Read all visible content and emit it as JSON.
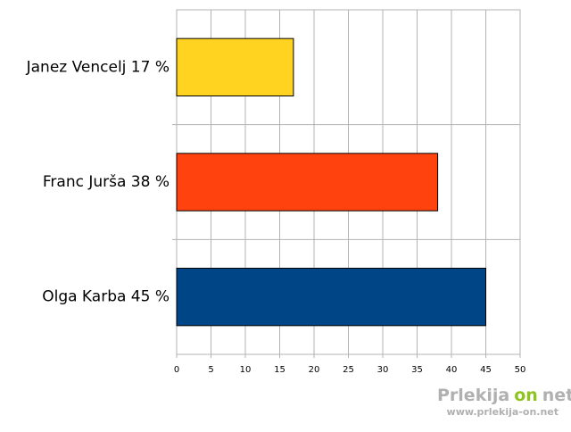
{
  "chart_data": {
    "type": "barh",
    "categories": [
      "Janez Vencelj 17 %",
      "Franc Jurša 38 %",
      "Olga Karba 45 %"
    ],
    "values": [
      17,
      38,
      45
    ],
    "colors": [
      "#ffd320",
      "#ff420e",
      "#004586"
    ],
    "xlim": [
      0,
      50
    ],
    "xticks": [
      0,
      5,
      10,
      15,
      20,
      25,
      30,
      35,
      40,
      45,
      50
    ],
    "grid": true
  },
  "watermark": {
    "brand": [
      "Prlekija",
      "on",
      "net"
    ],
    "url": "www.prlekija-on.net"
  }
}
